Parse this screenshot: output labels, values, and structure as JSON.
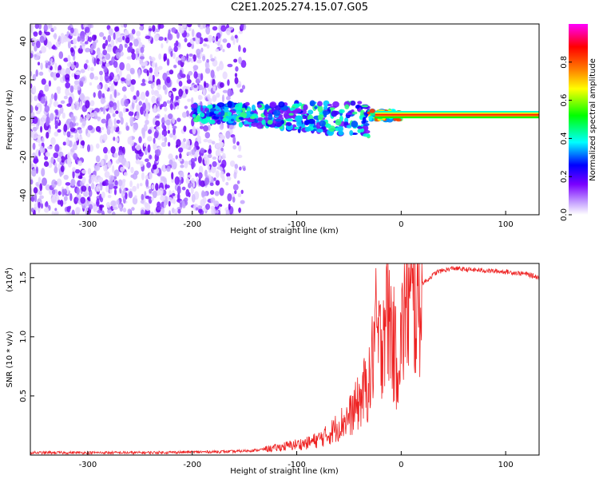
{
  "title": "C2E1.2025.274.15.07.G05",
  "chart_data": [
    {
      "type": "heatmap",
      "title": "",
      "xlabel": "Height of straight line (km)",
      "ylabel": "Frequency (Hz)",
      "xlim": [
        -355,
        132
      ],
      "ylim": [
        -50,
        49
      ],
      "xticks": [
        -300,
        -200,
        -100,
        0,
        100
      ],
      "yticks": [
        -40,
        -20,
        0,
        20,
        40
      ],
      "colorbar": {
        "label": "Normalized spectral amplitude",
        "range": [
          0,
          1
        ],
        "ticks": [
          0.0,
          0.2,
          0.4,
          0.6,
          0.8
        ],
        "tick_labels": [
          "0.0",
          "0.2",
          "0.4",
          "0.6",
          "0.8"
        ],
        "colors": [
          "#ffffff",
          "#7a00ff",
          "#0000ff",
          "#00ffff",
          "#00ff00",
          "#ffff00",
          "#ff8000",
          "#ff0000",
          "#ff00ff"
        ]
      },
      "regions": [
        {
          "x_range": [
            -355,
            -150
          ],
          "freq_range": [
            -50,
            49
          ],
          "amplitude": 0.1,
          "description_level": "noise"
        },
        {
          "x_range": [
            -200,
            -30
          ],
          "freq_range": [
            -6,
            8
          ],
          "amplitude": 0.3
        },
        {
          "x_range": [
            -30,
            0
          ],
          "freq_range": [
            -2,
            5
          ],
          "amplitude": 0.45
        },
        {
          "x_range": [
            0,
            132
          ],
          "freq_range": [
            0,
            3
          ],
          "amplitude": 0.85
        }
      ]
    },
    {
      "type": "line",
      "title": "",
      "xlabel": "Height of straight line (km)",
      "ylabel": "SNR (10 * v/v)",
      "scale_label": "(x10",
      "scale_exp": "4",
      "scale_close": ")",
      "xlim": [
        -355,
        132
      ],
      "ylim": [
        0,
        1.62
      ],
      "xticks": [
        -300,
        -200,
        -100,
        0,
        100
      ],
      "yticks": [
        0.5,
        1.0,
        1.5
      ],
      "ytick_labels": [
        "0.5",
        "1.0",
        "1.5"
      ],
      "color": "#ee2222",
      "series": [
        {
          "x": [
            -355,
            -300,
            -250,
            -200,
            -160,
            -140,
            -120,
            -100,
            -90,
            -80,
            -70,
            -60,
            -50,
            -40,
            -35,
            -30,
            -25,
            -20,
            -15,
            -10,
            -5,
            0,
            5,
            10,
            15,
            20,
            25,
            30,
            35,
            40,
            50,
            60,
            80,
            100,
            120,
            132
          ],
          "y": [
            0.02,
            0.02,
            0.02,
            0.025,
            0.03,
            0.04,
            0.06,
            0.09,
            0.1,
            0.13,
            0.17,
            0.25,
            0.32,
            0.45,
            0.55,
            0.6,
            1.05,
            0.9,
            1.3,
            1.1,
            0.8,
            0.95,
            1.35,
            1.25,
            1.3,
            1.45,
            1.48,
            1.52,
            1.55,
            1.56,
            1.58,
            1.57,
            1.56,
            1.55,
            1.53,
            1.5
          ]
        }
      ]
    }
  ]
}
